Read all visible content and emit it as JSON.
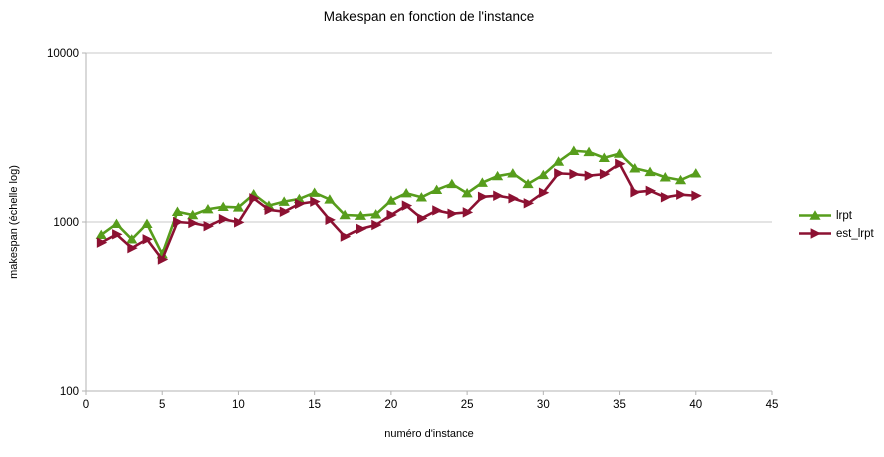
{
  "title": "Makespan en fonction de l'instance",
  "axes": {
    "x_title": "numéro d'instance",
    "y_title": "makespan (échelle log)",
    "x_ticks": [
      0,
      5,
      10,
      15,
      20,
      25,
      30,
      35,
      40,
      45
    ],
    "y_ticks": [
      100,
      1000,
      10000
    ]
  },
  "legend": {
    "items": [
      {
        "label": "lrpt",
        "color": "#579d1c",
        "marker": "triangle-up"
      },
      {
        "label": "est_lrpt",
        "color": "#8c1132",
        "marker": "triangle-right"
      }
    ]
  },
  "colors": {
    "lrpt": "#579d1c",
    "est_lrpt": "#8c1132",
    "gridline": "#c9c9c9",
    "axis": "#b3b3b3",
    "text": "#000000"
  },
  "chart_data": {
    "type": "line",
    "title": "Makespan en fonction de l'instance",
    "xlabel": "numéro d'instance",
    "ylabel": "makespan (échelle log)",
    "y_scale": "log",
    "xlim": [
      0,
      45
    ],
    "ylim": [
      100,
      10000
    ],
    "grid": "horizontal-major",
    "legend_position": "right",
    "x": [
      1,
      2,
      3,
      4,
      5,
      6,
      7,
      8,
      9,
      10,
      11,
      12,
      13,
      14,
      15,
      16,
      17,
      18,
      19,
      20,
      21,
      22,
      23,
      24,
      25,
      26,
      27,
      28,
      29,
      30,
      31,
      32,
      33,
      34,
      35,
      36,
      37,
      38,
      39,
      40
    ],
    "series": [
      {
        "name": "lrpt",
        "color": "#579d1c",
        "marker": "triangle-up",
        "values": [
          840,
          975,
          790,
          975,
          645,
          1150,
          1100,
          1190,
          1230,
          1220,
          1460,
          1250,
          1320,
          1370,
          1490,
          1360,
          1100,
          1090,
          1110,
          1340,
          1480,
          1400,
          1550,
          1680,
          1480,
          1710,
          1870,
          1940,
          1680,
          1900,
          2280,
          2640,
          2600,
          2400,
          2540,
          2080,
          1980,
          1840,
          1770,
          1940
        ]
      },
      {
        "name": "est_lrpt",
        "color": "#8c1132",
        "marker": "triangle-right",
        "values": [
          755,
          845,
          700,
          790,
          600,
          1000,
          985,
          945,
          1040,
          995,
          1380,
          1180,
          1150,
          1280,
          1320,
          1030,
          820,
          910,
          960,
          1100,
          1250,
          1050,
          1170,
          1120,
          1140,
          1410,
          1430,
          1380,
          1290,
          1490,
          1940,
          1920,
          1880,
          1920,
          2210,
          1500,
          1530,
          1400,
          1450,
          1430
        ]
      }
    ]
  }
}
